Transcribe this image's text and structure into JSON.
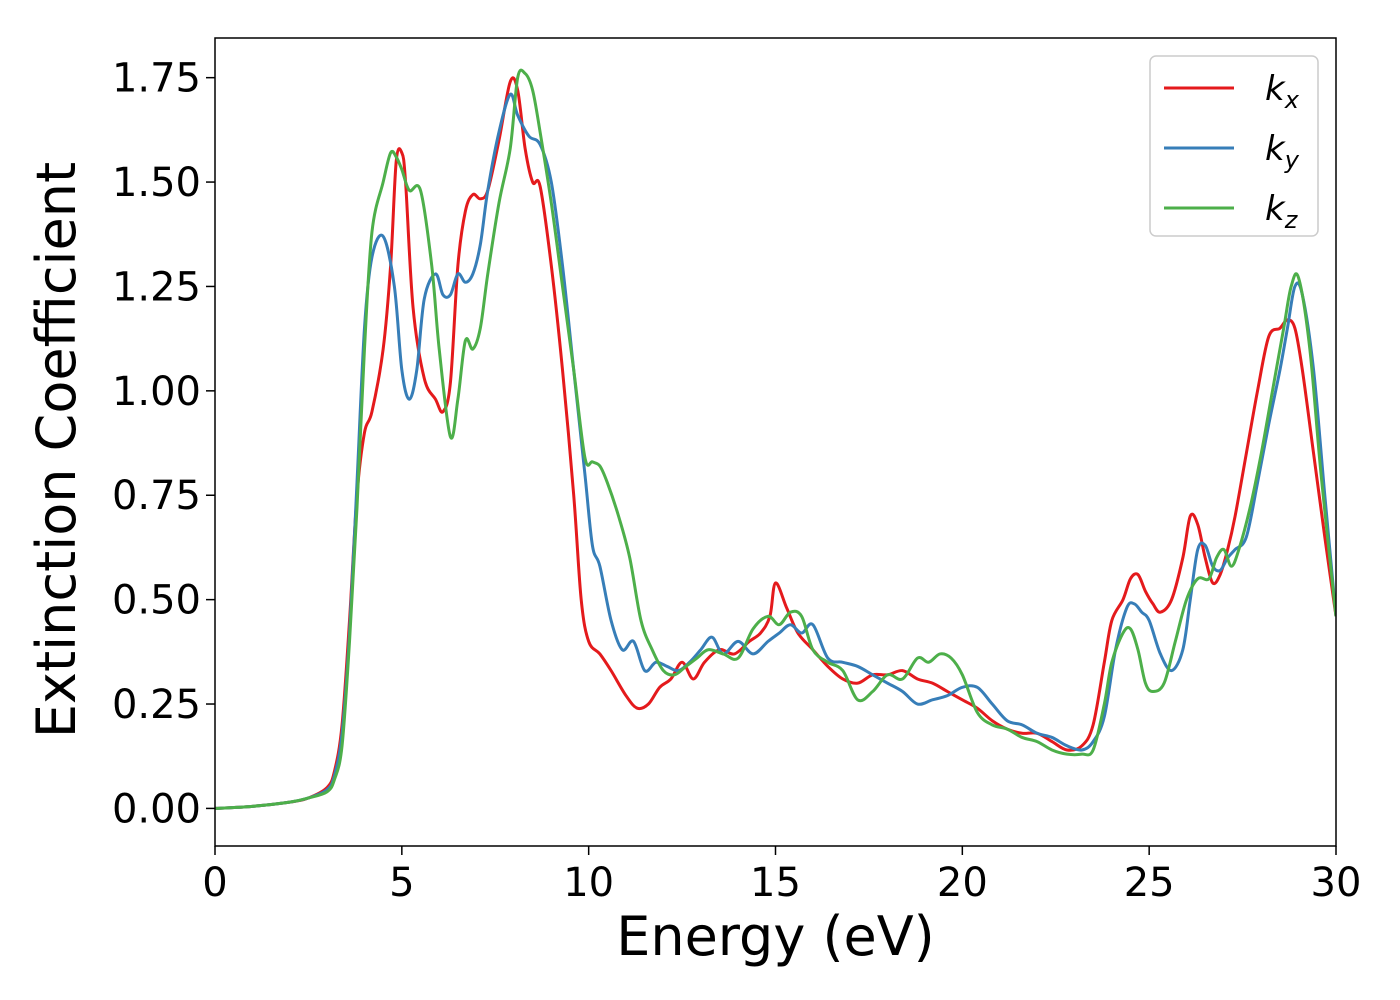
{
  "chart_data": {
    "type": "line",
    "title": "",
    "xlabel": "Energy (eV)",
    "ylabel": "Extinction Coefficient",
    "xlim": [
      0,
      30
    ],
    "ylim": [
      -0.09,
      1.845
    ],
    "xticks": [
      0,
      5,
      10,
      15,
      20,
      25,
      30
    ],
    "xtick_labels": [
      "0",
      "5",
      "10",
      "15",
      "20",
      "25",
      "30"
    ],
    "yticks": [
      0.0,
      0.25,
      0.5,
      0.75,
      1.0,
      1.25,
      1.5,
      1.75
    ],
    "ytick_labels": [
      "0.00",
      "0.25",
      "0.50",
      "0.75",
      "1.00",
      "1.25",
      "1.50",
      "1.75"
    ],
    "grid": false,
    "legend_position": "top-right",
    "series": [
      {
        "name": "k_x",
        "label_base": "k",
        "label_sub": "x",
        "color": "#e41a1c",
        "x": [
          0,
          1,
          2,
          2.5,
          3.0,
          3.2,
          3.4,
          3.6,
          3.8,
          4.0,
          4.2,
          4.5,
          4.7,
          4.85,
          5.0,
          5.1,
          5.3,
          5.6,
          5.9,
          6.1,
          6.3,
          6.5,
          6.7,
          6.9,
          7.1,
          7.3,
          7.6,
          7.9,
          8.1,
          8.3,
          8.5,
          8.7,
          9.0,
          9.3,
          9.6,
          9.8,
          10.0,
          10.3,
          10.6,
          11.0,
          11.3,
          11.6,
          11.9,
          12.2,
          12.5,
          12.8,
          13.1,
          13.5,
          13.9,
          14.3,
          14.6,
          14.85,
          15.0,
          15.3,
          15.6,
          16.0,
          16.4,
          16.8,
          17.2,
          17.6,
          18.0,
          18.4,
          18.8,
          19.2,
          19.6,
          20.0,
          20.4,
          20.8,
          21.2,
          21.6,
          22.0,
          22.4,
          22.8,
          23.2,
          23.5,
          23.8,
          24.0,
          24.3,
          24.5,
          24.7,
          24.9,
          25.1,
          25.3,
          25.6,
          25.9,
          26.1,
          26.3,
          26.5,
          26.7,
          26.9,
          27.1,
          27.3,
          27.6,
          27.9,
          28.2,
          28.5,
          28.7,
          28.9,
          29.1,
          29.4,
          29.7,
          30.0
        ],
        "y": [
          0.0,
          0.005,
          0.015,
          0.025,
          0.05,
          0.09,
          0.2,
          0.45,
          0.75,
          0.9,
          0.95,
          1.1,
          1.3,
          1.55,
          1.57,
          1.5,
          1.2,
          1.03,
          0.98,
          0.95,
          1.02,
          1.3,
          1.43,
          1.47,
          1.46,
          1.48,
          1.6,
          1.74,
          1.72,
          1.58,
          1.5,
          1.49,
          1.3,
          1.05,
          0.75,
          0.5,
          0.4,
          0.37,
          0.33,
          0.27,
          0.24,
          0.25,
          0.29,
          0.31,
          0.35,
          0.31,
          0.35,
          0.38,
          0.37,
          0.4,
          0.42,
          0.46,
          0.54,
          0.48,
          0.42,
          0.38,
          0.34,
          0.31,
          0.3,
          0.32,
          0.32,
          0.33,
          0.31,
          0.3,
          0.28,
          0.26,
          0.24,
          0.21,
          0.19,
          0.18,
          0.18,
          0.16,
          0.14,
          0.15,
          0.2,
          0.35,
          0.45,
          0.5,
          0.55,
          0.56,
          0.52,
          0.49,
          0.47,
          0.5,
          0.6,
          0.7,
          0.68,
          0.6,
          0.54,
          0.56,
          0.62,
          0.7,
          0.85,
          1.0,
          1.13,
          1.15,
          1.17,
          1.15,
          1.05,
          0.85,
          0.65,
          0.46
        ]
      },
      {
        "name": "k_y",
        "label_base": "k",
        "label_sub": "y",
        "color": "#377eb8",
        "x": [
          0,
          1,
          2,
          2.5,
          3.0,
          3.2,
          3.4,
          3.6,
          3.8,
          4.0,
          4.2,
          4.5,
          4.8,
          5.0,
          5.2,
          5.4,
          5.6,
          5.9,
          6.1,
          6.3,
          6.5,
          6.7,
          6.9,
          7.1,
          7.3,
          7.6,
          7.9,
          8.1,
          8.4,
          8.7,
          9.0,
          9.3,
          9.6,
          9.9,
          10.1,
          10.3,
          10.6,
          10.9,
          11.2,
          11.5,
          11.8,
          12.1,
          12.4,
          12.7,
          13.0,
          13.3,
          13.6,
          14.0,
          14.4,
          14.8,
          15.1,
          15.4,
          15.7,
          16.0,
          16.4,
          16.8,
          17.2,
          17.6,
          18.0,
          18.4,
          18.8,
          19.2,
          19.6,
          20.0,
          20.4,
          20.8,
          21.2,
          21.6,
          22.0,
          22.4,
          22.8,
          23.2,
          23.5,
          23.8,
          24.1,
          24.4,
          24.6,
          24.8,
          25.0,
          25.3,
          25.6,
          25.9,
          26.1,
          26.3,
          26.5,
          26.7,
          26.9,
          27.1,
          27.3,
          27.6,
          27.9,
          28.2,
          28.5,
          28.7,
          28.9,
          29.1,
          29.4,
          29.7,
          30.0
        ],
        "y": [
          0.0,
          0.005,
          0.015,
          0.025,
          0.045,
          0.08,
          0.18,
          0.42,
          0.78,
          1.15,
          1.32,
          1.37,
          1.25,
          1.05,
          0.98,
          1.05,
          1.22,
          1.28,
          1.23,
          1.23,
          1.28,
          1.26,
          1.28,
          1.35,
          1.48,
          1.62,
          1.71,
          1.66,
          1.61,
          1.59,
          1.5,
          1.3,
          1.05,
          0.8,
          0.63,
          0.58,
          0.45,
          0.38,
          0.4,
          0.33,
          0.35,
          0.34,
          0.33,
          0.35,
          0.38,
          0.41,
          0.37,
          0.4,
          0.37,
          0.4,
          0.42,
          0.44,
          0.42,
          0.44,
          0.36,
          0.35,
          0.34,
          0.32,
          0.3,
          0.28,
          0.25,
          0.26,
          0.27,
          0.29,
          0.29,
          0.25,
          0.21,
          0.2,
          0.18,
          0.17,
          0.15,
          0.14,
          0.16,
          0.22,
          0.38,
          0.48,
          0.49,
          0.47,
          0.45,
          0.37,
          0.33,
          0.38,
          0.5,
          0.62,
          0.63,
          0.58,
          0.57,
          0.6,
          0.62,
          0.65,
          0.78,
          0.92,
          1.05,
          1.15,
          1.25,
          1.23,
          1.05,
          0.75,
          0.46
        ]
      },
      {
        "name": "k_z",
        "label_base": "k",
        "label_sub": "z",
        "color": "#4daf4a",
        "x": [
          0,
          1,
          2,
          2.5,
          3.0,
          3.2,
          3.4,
          3.6,
          3.8,
          4.0,
          4.2,
          4.5,
          4.7,
          4.85,
          5.0,
          5.2,
          5.5,
          5.8,
          6.0,
          6.3,
          6.5,
          6.7,
          6.9,
          7.1,
          7.3,
          7.6,
          7.9,
          8.1,
          8.3,
          8.5,
          8.7,
          9.0,
          9.3,
          9.6,
          9.9,
          10.1,
          10.3,
          10.5,
          10.8,
          11.1,
          11.4,
          11.7,
          12.0,
          12.3,
          12.6,
          12.9,
          13.2,
          13.6,
          14.0,
          14.4,
          14.8,
          15.1,
          15.4,
          15.7,
          16.0,
          16.4,
          16.8,
          17.2,
          17.6,
          18.0,
          18.4,
          18.8,
          19.1,
          19.4,
          19.7,
          20.0,
          20.4,
          20.8,
          21.2,
          21.6,
          22.0,
          22.4,
          22.8,
          23.2,
          23.5,
          23.8,
          24.0,
          24.3,
          24.5,
          24.7,
          24.9,
          25.1,
          25.4,
          25.7,
          26.0,
          26.3,
          26.6,
          26.8,
          27.0,
          27.2,
          27.4,
          27.7,
          28.0,
          28.3,
          28.6,
          28.8,
          29.0,
          29.3,
          29.6,
          30.0
        ],
        "y": [
          0.0,
          0.005,
          0.015,
          0.025,
          0.04,
          0.07,
          0.15,
          0.4,
          0.72,
          1.1,
          1.38,
          1.5,
          1.57,
          1.56,
          1.53,
          1.48,
          1.48,
          1.3,
          1.1,
          0.89,
          0.98,
          1.12,
          1.1,
          1.15,
          1.28,
          1.45,
          1.58,
          1.75,
          1.76,
          1.72,
          1.62,
          1.45,
          1.25,
          1.05,
          0.84,
          0.83,
          0.82,
          0.78,
          0.7,
          0.6,
          0.45,
          0.38,
          0.33,
          0.32,
          0.34,
          0.36,
          0.38,
          0.37,
          0.36,
          0.43,
          0.46,
          0.44,
          0.47,
          0.46,
          0.38,
          0.35,
          0.33,
          0.26,
          0.28,
          0.32,
          0.31,
          0.36,
          0.35,
          0.37,
          0.36,
          0.32,
          0.23,
          0.2,
          0.19,
          0.17,
          0.16,
          0.14,
          0.13,
          0.13,
          0.14,
          0.25,
          0.35,
          0.42,
          0.43,
          0.38,
          0.3,
          0.28,
          0.3,
          0.4,
          0.5,
          0.55,
          0.55,
          0.6,
          0.62,
          0.58,
          0.62,
          0.72,
          0.85,
          1.0,
          1.15,
          1.25,
          1.27,
          1.1,
          0.8,
          0.46
        ]
      }
    ]
  }
}
